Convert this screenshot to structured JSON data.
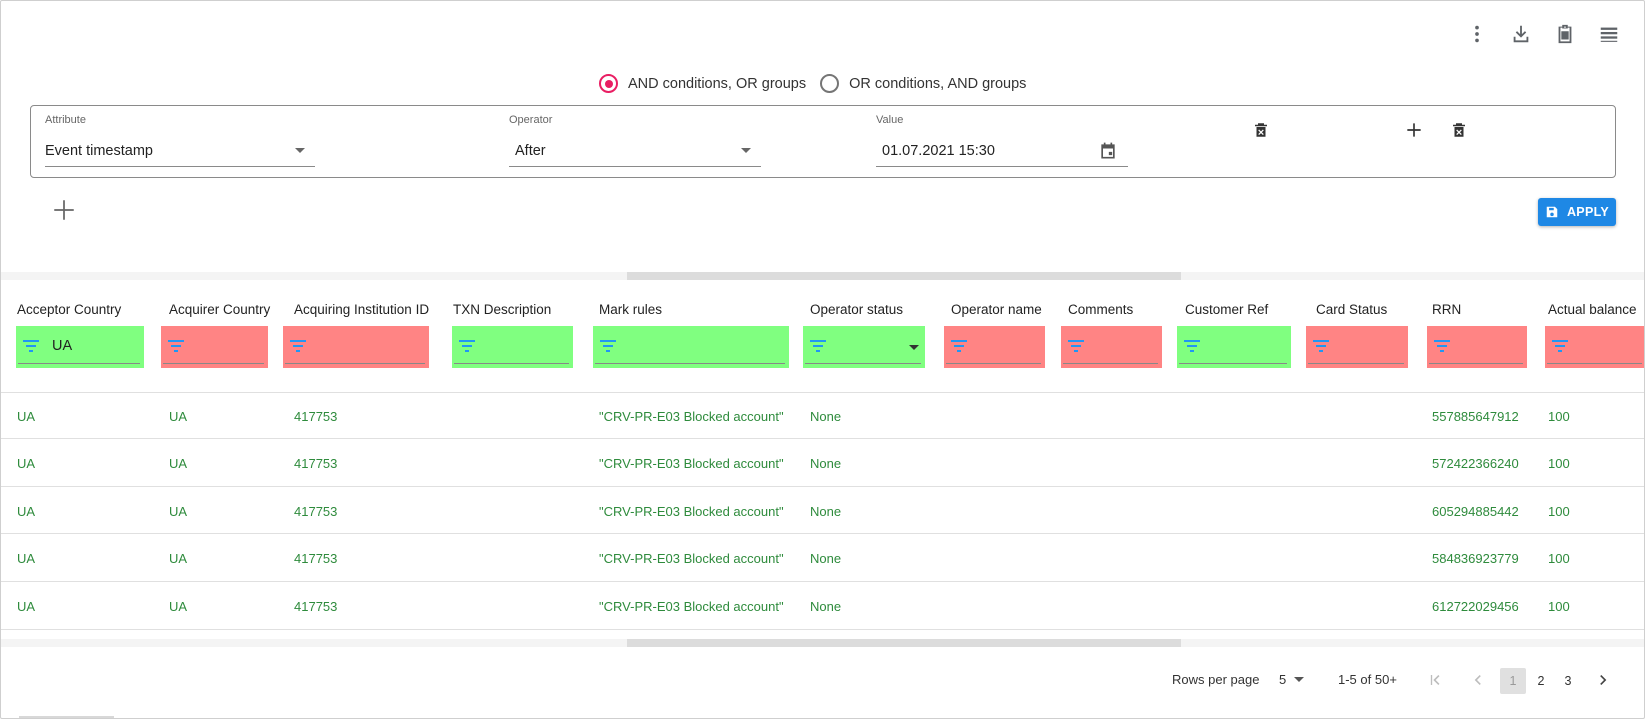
{
  "toolbar": {
    "icons": [
      "more-vert-icon",
      "download-icon",
      "clipboard-icon",
      "columns-icon"
    ]
  },
  "logic": {
    "option_and": "AND conditions, OR groups",
    "option_or": "OR conditions, AND groups",
    "selected": "and"
  },
  "condition": {
    "attribute_label": "Attribute",
    "attribute_value": "Event timestamp",
    "operator_label": "Operator",
    "operator_value": "After",
    "value_label": "Value",
    "value_value": "01.07.2021 15:30"
  },
  "apply_label": "APPLY",
  "columns": [
    {
      "label": "Acceptor Country",
      "filter": "UA",
      "status": "green"
    },
    {
      "label": "Acquirer Country",
      "filter": "",
      "status": "red"
    },
    {
      "label": "Acquiring Institution ID",
      "filter": "",
      "status": "red"
    },
    {
      "label": "TXN Description",
      "filter": "",
      "status": "green"
    },
    {
      "label": "Mark rules",
      "filter": "",
      "status": "green"
    },
    {
      "label": "Operator status",
      "filter": "",
      "status": "green"
    },
    {
      "label": "Operator name",
      "filter": "",
      "status": "red"
    },
    {
      "label": "Comments",
      "filter": "",
      "status": "red"
    },
    {
      "label": "Customer Ref",
      "filter": "",
      "status": "green"
    },
    {
      "label": "Card Status",
      "filter": "",
      "status": "red"
    },
    {
      "label": "RRN",
      "filter": "",
      "status": "red"
    },
    {
      "label": "Actual balance",
      "filter": "",
      "status": "red"
    }
  ],
  "rows": [
    [
      "UA",
      "UA",
      "417753",
      "",
      "\"CRV-PR-E03 Blocked account\"",
      "None",
      "",
      "",
      "",
      "",
      "557885647912",
      "100"
    ],
    [
      "UA",
      "UA",
      "417753",
      "",
      "\"CRV-PR-E03 Blocked account\"",
      "None",
      "",
      "",
      "",
      "",
      "572422366240",
      "100"
    ],
    [
      "UA",
      "UA",
      "417753",
      "",
      "\"CRV-PR-E03 Blocked account\"",
      "None",
      "",
      "",
      "",
      "",
      "605294885442",
      "100"
    ],
    [
      "UA",
      "UA",
      "417753",
      "",
      "\"CRV-PR-E03 Blocked account\"",
      "None",
      "",
      "",
      "",
      "",
      "584836923779",
      "100"
    ],
    [
      "UA",
      "UA",
      "417753",
      "",
      "\"CRV-PR-E03 Blocked account\"",
      "None",
      "",
      "",
      "",
      "",
      "612722029456",
      "100"
    ]
  ],
  "pagination": {
    "rows_per_page_label": "Rows per page",
    "rows_per_page": "5",
    "range": "1-5 of 50+",
    "pages": [
      "1",
      "2",
      "3"
    ],
    "current_page": "1"
  },
  "colors": {
    "accent_radio": "#e91e63",
    "apply_button": "#1e88e5",
    "filter_ok": "#80ff80",
    "filter_bad": "#ff8484",
    "row_text": "#2e8b3c"
  }
}
